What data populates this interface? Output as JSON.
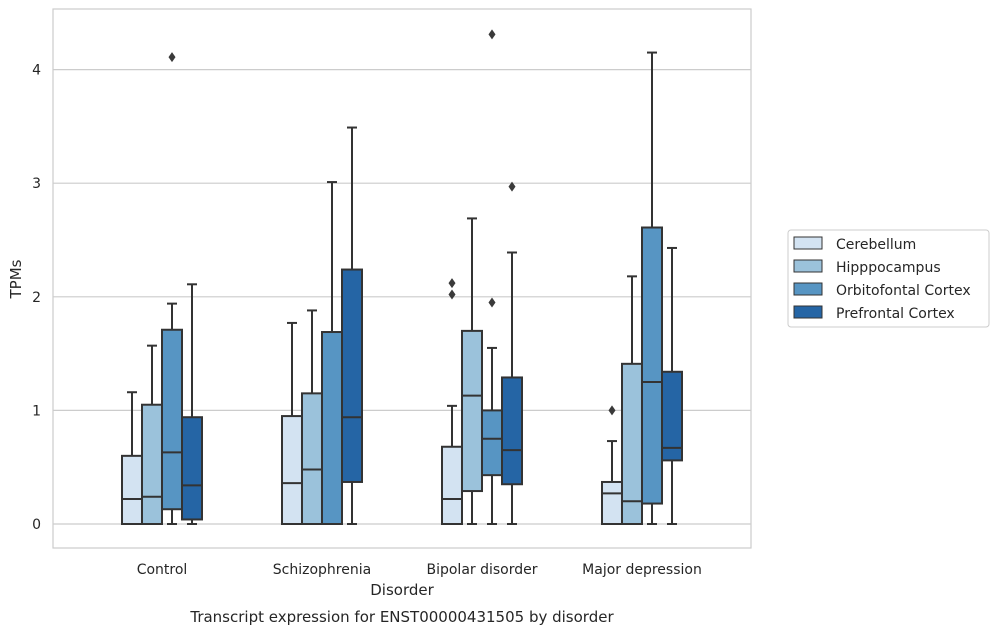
{
  "chart_data": {
    "type": "boxplot",
    "title": "Transcript expression for ENST00000431505 by disorder",
    "xlabel": "Disorder",
    "ylabel": "TPMs",
    "categories": [
      "Control",
      "Schizophrenia",
      "Bipolar disorder",
      "Major depression"
    ],
    "y_ticks": [
      0,
      1,
      2,
      3,
      4
    ],
    "ylim": [
      -0.2,
      4.55
    ],
    "grid": "horizontal",
    "legend_position": "right",
    "series": [
      {
        "name": "Cerebellum",
        "color": "#d3e3f2",
        "boxes": [
          {
            "min": 0,
            "q1": 0,
            "median": 0.22,
            "q3": 0.6,
            "max": 1.16,
            "outliers": []
          },
          {
            "min": 0,
            "q1": 0,
            "median": 0.36,
            "q3": 0.95,
            "max": 1.77,
            "outliers": []
          },
          {
            "min": 0,
            "q1": 0,
            "median": 0.22,
            "q3": 0.68,
            "max": 1.04,
            "outliers": [
              2.02,
              2.12
            ]
          },
          {
            "min": 0,
            "q1": 0,
            "median": 0.27,
            "q3": 0.37,
            "max": 0.73,
            "outliers": [
              1.0
            ]
          }
        ]
      },
      {
        "name": "Hipppocampus",
        "color": "#9bc2db",
        "boxes": [
          {
            "min": 0,
            "q1": 0,
            "median": 0.24,
            "q3": 1.05,
            "max": 1.57,
            "outliers": []
          },
          {
            "min": 0,
            "q1": 0,
            "median": 0.48,
            "q3": 1.15,
            "max": 1.88,
            "outliers": []
          },
          {
            "min": 0,
            "q1": 0.29,
            "median": 1.13,
            "q3": 1.7,
            "max": 2.69,
            "outliers": []
          },
          {
            "min": 0,
            "q1": 0,
            "median": 0.2,
            "q3": 1.41,
            "max": 2.18,
            "outliers": []
          }
        ]
      },
      {
        "name": "Orbitofontal Cortex",
        "color": "#5795c3",
        "boxes": [
          {
            "min": 0,
            "q1": 0.13,
            "median": 0.63,
            "q3": 1.71,
            "max": 1.94,
            "outliers": [
              4.11
            ]
          },
          {
            "min": 0,
            "q1": 0,
            "median": 0,
            "q3": 1.69,
            "max": 3.01,
            "outliers": []
          },
          {
            "min": 0,
            "q1": 0.43,
            "median": 0.75,
            "q3": 1.0,
            "max": 1.55,
            "outliers": [
              1.95,
              4.31
            ]
          },
          {
            "min": 0,
            "q1": 0.18,
            "median": 1.25,
            "q3": 2.61,
            "max": 4.15,
            "outliers": []
          }
        ]
      },
      {
        "name": "Prefrontal Cortex",
        "color": "#2565a5",
        "boxes": [
          {
            "min": 0,
            "q1": 0.04,
            "median": 0.34,
            "q3": 0.94,
            "max": 2.11,
            "outliers": []
          },
          {
            "min": 0,
            "q1": 0.37,
            "median": 0.94,
            "q3": 2.24,
            "max": 3.49,
            "outliers": []
          },
          {
            "min": 0,
            "q1": 0.35,
            "median": 0.65,
            "q3": 1.29,
            "max": 2.39,
            "outliers": [
              2.97
            ]
          },
          {
            "min": 0,
            "q1": 0.56,
            "median": 0.67,
            "q3": 1.34,
            "max": 2.43,
            "outliers": []
          }
        ]
      }
    ]
  }
}
